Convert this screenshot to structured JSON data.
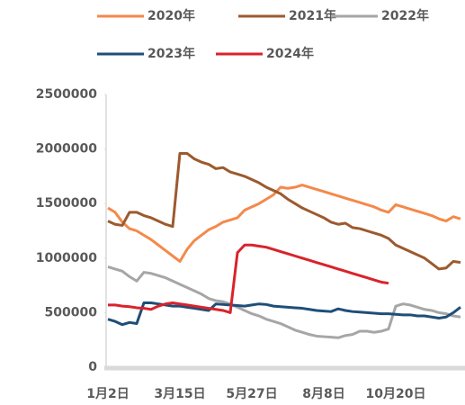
{
  "chart_data": {
    "type": "line",
    "categories": [
      "1月2日",
      null,
      null,
      null,
      null,
      null,
      null,
      null,
      null,
      null,
      "3月15日",
      null,
      null,
      null,
      null,
      null,
      null,
      null,
      null,
      null,
      "5月27日",
      null,
      null,
      null,
      null,
      null,
      null,
      null,
      null,
      null,
      "8月8日",
      null,
      null,
      null,
      null,
      null,
      null,
      null,
      null,
      null,
      "10月20日",
      null,
      null,
      null,
      null,
      null,
      null,
      null,
      null,
      null
    ],
    "ylim": [
      0,
      2500000
    ],
    "yticks": [
      0,
      500000,
      1000000,
      1500000,
      2000000,
      2500000
    ],
    "series": [
      {
        "name": "2020年",
        "color": "#f4894b",
        "values": [
          1460000,
          1420000,
          1330000,
          1270000,
          1250000,
          1210000,
          1170000,
          1120000,
          1070000,
          1020000,
          970000,
          1080000,
          1160000,
          1210000,
          1260000,
          1290000,
          1330000,
          1350000,
          1370000,
          1440000,
          1470000,
          1500000,
          1540000,
          1580000,
          1650000,
          1640000,
          1650000,
          1670000,
          1650000,
          1630000,
          1610000,
          1590000,
          1570000,
          1550000,
          1530000,
          1510000,
          1490000,
          1470000,
          1440000,
          1420000,
          1490000,
          1470000,
          1450000,
          1430000,
          1410000,
          1390000,
          1360000,
          1340000,
          1380000,
          1360000
        ]
      },
      {
        "name": "2021年",
        "color": "#9c5a2e",
        "values": [
          1340000,
          1310000,
          1300000,
          1420000,
          1420000,
          1390000,
          1370000,
          1340000,
          1310000,
          1290000,
          1960000,
          1960000,
          1910000,
          1880000,
          1860000,
          1820000,
          1830000,
          1790000,
          1770000,
          1750000,
          1720000,
          1690000,
          1650000,
          1620000,
          1590000,
          1540000,
          1500000,
          1460000,
          1430000,
          1400000,
          1370000,
          1330000,
          1310000,
          1320000,
          1280000,
          1270000,
          1250000,
          1230000,
          1210000,
          1180000,
          1120000,
          1090000,
          1060000,
          1030000,
          1000000,
          950000,
          900000,
          910000,
          970000,
          960000
        ]
      },
      {
        "name": "2022年",
        "color": "#a6a6a6",
        "values": [
          920000,
          900000,
          880000,
          830000,
          790000,
          870000,
          860000,
          840000,
          820000,
          790000,
          760000,
          730000,
          700000,
          670000,
          630000,
          610000,
          600000,
          580000,
          550000,
          520000,
          490000,
          470000,
          440000,
          420000,
          400000,
          370000,
          340000,
          320000,
          300000,
          285000,
          280000,
          275000,
          270000,
          290000,
          300000,
          330000,
          330000,
          320000,
          330000,
          350000,
          560000,
          580000,
          570000,
          550000,
          530000,
          520000,
          500000,
          490000,
          470000,
          460000
        ]
      },
      {
        "name": "2023年",
        "color": "#1f4e79",
        "values": [
          440000,
          420000,
          390000,
          410000,
          400000,
          590000,
          590000,
          580000,
          570000,
          560000,
          560000,
          550000,
          540000,
          530000,
          520000,
          580000,
          575000,
          570000,
          565000,
          560000,
          570000,
          580000,
          575000,
          560000,
          555000,
          550000,
          545000,
          540000,
          530000,
          520000,
          515000,
          510000,
          535000,
          520000,
          510000,
          505000,
          500000,
          495000,
          490000,
          490000,
          485000,
          480000,
          480000,
          470000,
          470000,
          460000,
          450000,
          460000,
          500000,
          550000
        ]
      },
      {
        "name": "2024年",
        "color": "#d9232a",
        "values": [
          570000,
          570000,
          560000,
          555000,
          545000,
          540000,
          530000,
          560000,
          580000,
          590000,
          580000,
          570000,
          560000,
          550000,
          540000,
          530000,
          520000,
          500000,
          1050000,
          1120000,
          1120000,
          1110000,
          1100000,
          1080000,
          1060000,
          1040000,
          1020000,
          1000000,
          980000,
          960000,
          940000,
          920000,
          900000,
          880000,
          860000,
          840000,
          820000,
          800000,
          780000,
          770000,
          null,
          null,
          null,
          null,
          null,
          null,
          null,
          null,
          null,
          null
        ]
      }
    ]
  }
}
